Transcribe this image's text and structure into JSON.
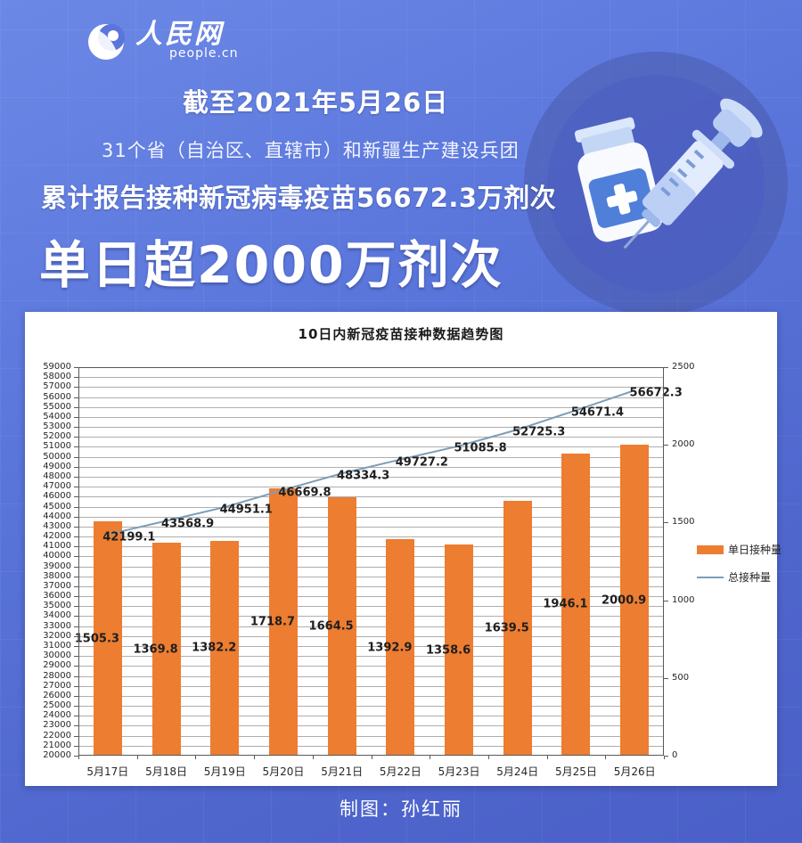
{
  "header": {
    "logo": {
      "name": "人民网",
      "subtitle": "people.cn"
    },
    "date_badge": "截至2021年5月26日",
    "scope_line": "31个省（自治区、直辖市）和新疆生产建设兵团",
    "total_line": "累计报告接种新冠病毒疫苗56672.3万剂次",
    "headline": "单日超2000万剂次"
  },
  "chart_data": {
    "type": "bar",
    "title": "10日内新冠疫苗接种数据趋势图",
    "categories": [
      "5月17日",
      "5月18日",
      "5月19日",
      "5月20日",
      "5月21日",
      "5月22日",
      "5月23日",
      "5月24日",
      "5月25日",
      "5月26日"
    ],
    "series": [
      {
        "name": "单日接种量",
        "type": "bar",
        "axis": "right",
        "color": "#ED7D31",
        "values": [
          1505.3,
          1369.8,
          1382.2,
          1718.7,
          1664.5,
          1392.9,
          1358.6,
          1639.5,
          1946.1,
          2000.9
        ]
      },
      {
        "name": "总接种量",
        "type": "line",
        "axis": "left",
        "color": "#7C9EB9",
        "values": [
          42199.1,
          43568.9,
          44951.1,
          46669.8,
          48334.3,
          49727.2,
          51085.8,
          52725.3,
          54671.4,
          56672.3
        ]
      }
    ],
    "left_axis": {
      "min": 20000,
      "max": 59000,
      "step": 1000
    },
    "right_axis": {
      "min": 0,
      "max": 2500,
      "step": 500
    },
    "grid": true,
    "legend_position": "right"
  },
  "footer": {
    "credit": "制图：孙红丽"
  },
  "colors": {
    "background": "#5670D6",
    "panel": "#FFFFFF",
    "bar": "#ED7D31",
    "line": "#7C9EB9",
    "text_on_blue": "#FFFFFF"
  }
}
